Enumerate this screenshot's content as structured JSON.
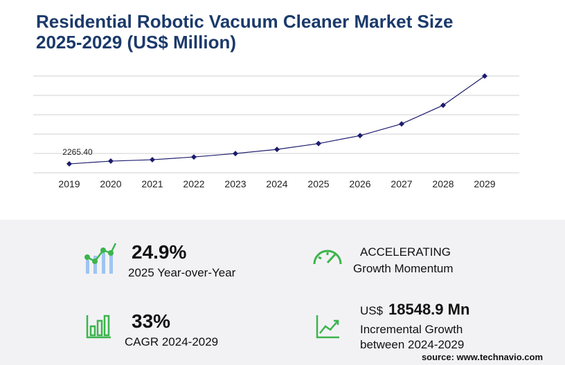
{
  "chart_data": {
    "type": "line",
    "title": "Residential Robotic Vacuum Cleaner Market Size",
    "subtitle": "2025-2029 (US$ Million)",
    "categories": [
      "2019",
      "2020",
      "2021",
      "2022",
      "2023",
      "2024",
      "2025",
      "2026",
      "2027",
      "2028",
      "2029"
    ],
    "values": [
      2265.4,
      2963,
      3312,
      4009,
      4880,
      5926,
      7400,
      9412,
      12375,
      17081,
      24475
    ],
    "value_labels": [
      "2265.40",
      null,
      null,
      null,
      null,
      null,
      null,
      null,
      null,
      null,
      null
    ],
    "color": "#1c1c6e",
    "ylim": [
      0,
      24475
    ],
    "grid": true
  },
  "kpis": [
    {
      "value": "24.9%",
      "label": "2025 Year-over-Year"
    },
    {
      "value": "ACCELERATING",
      "label": "Growth Momentum"
    },
    {
      "value": "33%",
      "label": "CAGR 2024-2029"
    },
    {
      "prefix": "US$",
      "value": "18548.9 Mn",
      "label": "Incremental Growth",
      "label2": "between 2024-2029"
    }
  ],
  "source": "source: www.technavio.com"
}
